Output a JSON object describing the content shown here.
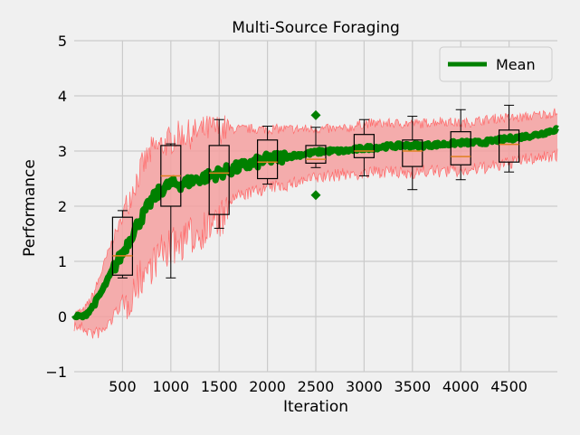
{
  "chart_data": {
    "type": "line",
    "title": "Multi-Source Foraging",
    "xlabel": "Iteration",
    "ylabel": "Performance",
    "xlim": [
      0,
      5000
    ],
    "ylim": [
      -1,
      5
    ],
    "xticks": [
      500,
      1000,
      1500,
      2000,
      2500,
      3000,
      3500,
      4000,
      4500
    ],
    "yticks": [
      -1,
      0,
      1,
      2,
      3,
      4,
      5
    ],
    "grid": true,
    "legend": {
      "position": "top-right",
      "entries": [
        "Mean"
      ]
    },
    "colors": {
      "mean": "#008000",
      "band": "#f5a0a0",
      "band_edge": "#ff6b6b",
      "box": "#000000",
      "median": "#e08020",
      "flier": "#008000",
      "background": "#f0f0f0",
      "grid": "#cbcbcb"
    },
    "mean_series": {
      "name": "Mean",
      "x": [
        0,
        100,
        200,
        300,
        400,
        500,
        600,
        700,
        800,
        900,
        1000,
        1100,
        1200,
        1300,
        1400,
        1500,
        1600,
        1700,
        1800,
        1900,
        2000,
        2200,
        2400,
        2600,
        2800,
        3000,
        3200,
        3400,
        3600,
        3800,
        4000,
        4200,
        4400,
        4600,
        4800,
        5000
      ],
      "y": [
        0,
        0,
        0.2,
        0.5,
        0.85,
        1.15,
        1.5,
        1.8,
        2.1,
        2.3,
        2.4,
        2.4,
        2.45,
        2.5,
        2.55,
        2.6,
        2.65,
        2.7,
        2.75,
        2.8,
        2.85,
        2.9,
        2.95,
        3.0,
        3.0,
        3.05,
        3.08,
        3.1,
        3.1,
        3.12,
        3.15,
        3.15,
        3.2,
        3.25,
        3.3,
        3.4
      ]
    },
    "band": {
      "x": [
        0,
        100,
        200,
        300,
        400,
        500,
        600,
        700,
        800,
        900,
        1000,
        1100,
        1200,
        1300,
        1400,
        1500,
        1600,
        1700,
        1800,
        1900,
        2000,
        2200,
        2400,
        2600,
        2800,
        3000,
        3200,
        3400,
        3600,
        3800,
        4000,
        4200,
        4400,
        4600,
        4800,
        5000
      ],
      "upper": [
        0.05,
        0.1,
        0.4,
        0.9,
        1.4,
        1.8,
        2.3,
        2.7,
        3.0,
        3.1,
        3.2,
        3.3,
        3.3,
        3.35,
        3.4,
        3.4,
        3.4,
        3.4,
        3.4,
        3.4,
        3.4,
        3.4,
        3.4,
        3.4,
        3.4,
        3.5,
        3.5,
        3.5,
        3.5,
        3.55,
        3.5,
        3.55,
        3.6,
        3.6,
        3.65,
        3.7
      ],
      "lower": [
        -0.05,
        -0.1,
        -0.2,
        -0.15,
        0.1,
        0.4,
        0.8,
        1.1,
        1.3,
        1.5,
        1.6,
        1.7,
        1.8,
        1.9,
        2.0,
        2.1,
        2.2,
        2.3,
        2.35,
        2.4,
        2.45,
        2.5,
        2.6,
        2.65,
        2.7,
        2.7,
        2.75,
        2.7,
        2.75,
        2.75,
        2.75,
        2.8,
        2.85,
        2.95,
        3.0,
        3.05
      ]
    },
    "boxplots": [
      {
        "x": 500,
        "whisker_low": 0.7,
        "q1": 0.75,
        "median": 1.1,
        "q3": 1.8,
        "whisker_high": 1.92,
        "fliers": []
      },
      {
        "x": 1000,
        "whisker_low": 0.7,
        "q1": 2.0,
        "median": 2.55,
        "q3": 3.1,
        "whisker_high": 3.13,
        "fliers": []
      },
      {
        "x": 1500,
        "whisker_low": 1.6,
        "q1": 1.85,
        "median": 2.6,
        "q3": 3.1,
        "whisker_high": 3.57,
        "fliers": []
      },
      {
        "x": 2000,
        "whisker_low": 2.4,
        "q1": 2.5,
        "median": 2.8,
        "q3": 3.2,
        "whisker_high": 3.45,
        "fliers": []
      },
      {
        "x": 2500,
        "whisker_low": 2.7,
        "q1": 2.78,
        "median": 2.85,
        "q3": 3.1,
        "whisker_high": 3.43,
        "fliers": [
          3.65,
          2.2
        ]
      },
      {
        "x": 3000,
        "whisker_low": 2.55,
        "q1": 2.88,
        "median": 3.0,
        "q3": 3.3,
        "whisker_high": 3.57,
        "fliers": []
      },
      {
        "x": 3500,
        "whisker_low": 2.3,
        "q1": 2.72,
        "median": 3.0,
        "q3": 3.2,
        "whisker_high": 3.63,
        "fliers": []
      },
      {
        "x": 4000,
        "whisker_low": 2.48,
        "q1": 2.75,
        "median": 2.9,
        "q3": 3.35,
        "whisker_high": 3.75,
        "fliers": []
      },
      {
        "x": 4500,
        "whisker_low": 2.62,
        "q1": 2.8,
        "median": 3.12,
        "q3": 3.38,
        "whisker_high": 3.83,
        "fliers": []
      }
    ]
  }
}
